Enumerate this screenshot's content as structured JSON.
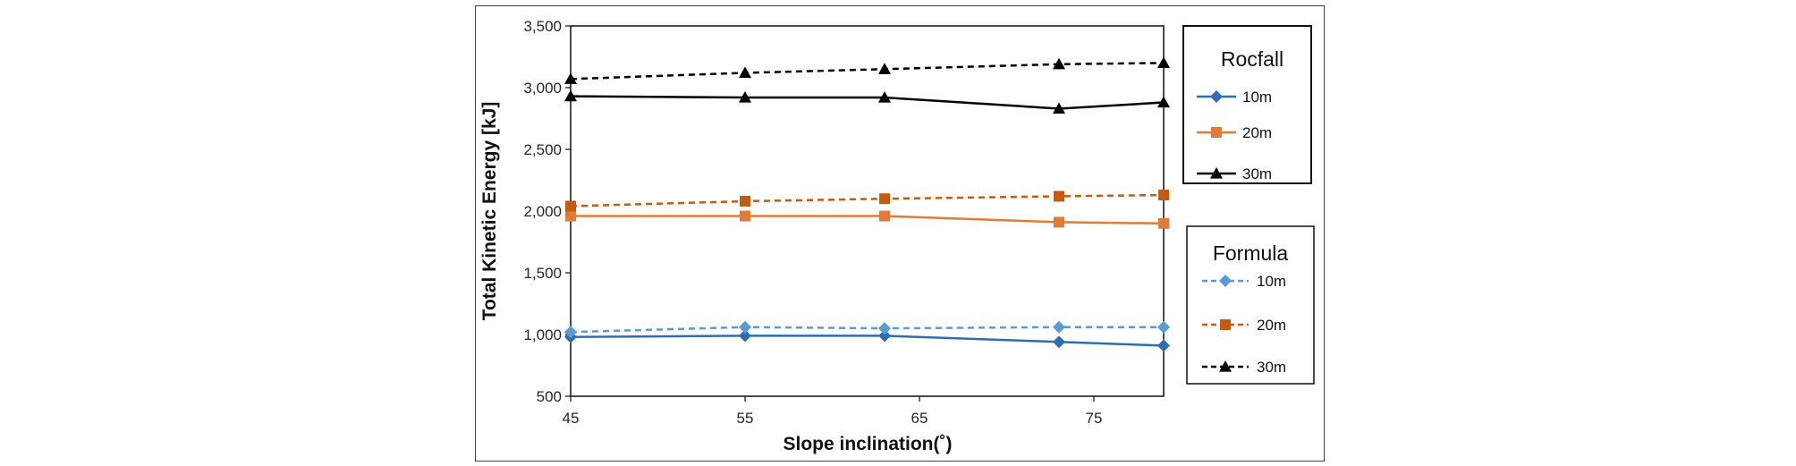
{
  "chart_data": {
    "type": "line",
    "xlabel": "Slope inclination(˚)",
    "ylabel": "Total Kinetic Energy [kJ]",
    "xlim": [
      45,
      79
    ],
    "ylim": [
      500,
      3500
    ],
    "x_ticks": [
      "45",
      "55",
      "65",
      "75"
    ],
    "y_ticks": [
      "500",
      "1,000",
      "1,500",
      "2,000",
      "2,500",
      "3,000",
      "3,500"
    ],
    "x": [
      45,
      55,
      63,
      73,
      79
    ],
    "legends": [
      {
        "title": "Rocfall",
        "entries": [
          "10m",
          "20m",
          "30m"
        ]
      },
      {
        "title": "Formula",
        "entries": [
          "10m",
          "20m",
          "30m"
        ]
      }
    ],
    "series": [
      {
        "name": "Rocfall 10m",
        "group": "Rocfall",
        "label": "10m",
        "color": "#2e6db4",
        "dashed": false,
        "marker": "diamond",
        "values": [
          980,
          990,
          990,
          940,
          910
        ]
      },
      {
        "name": "Rocfall 20m",
        "group": "Rocfall",
        "label": "20m",
        "color": "#e07b39",
        "dashed": false,
        "marker": "square",
        "values": [
          1960,
          1960,
          1960,
          1910,
          1900
        ]
      },
      {
        "name": "Rocfall 30m",
        "group": "Rocfall",
        "label": "30m",
        "color": "#000000",
        "dashed": false,
        "marker": "triangle",
        "values": [
          2930,
          2920,
          2920,
          2830,
          2880
        ]
      },
      {
        "name": "Formula 10m",
        "group": "Formula",
        "label": "10m",
        "color": "#5b9bd5",
        "dashed": true,
        "marker": "diamond",
        "values": [
          1020,
          1060,
          1050,
          1060,
          1060
        ]
      },
      {
        "name": "Formula 20m",
        "group": "Formula",
        "label": "20m",
        "color": "#c55a11",
        "dashed": true,
        "marker": "square",
        "values": [
          2040,
          2080,
          2100,
          2120,
          2130
        ]
      },
      {
        "name": "Formula 30m",
        "group": "Formula",
        "label": "30m",
        "color": "#000000",
        "dashed": true,
        "marker": "triangle",
        "values": [
          3070,
          3120,
          3150,
          3190,
          3200
        ]
      }
    ]
  }
}
